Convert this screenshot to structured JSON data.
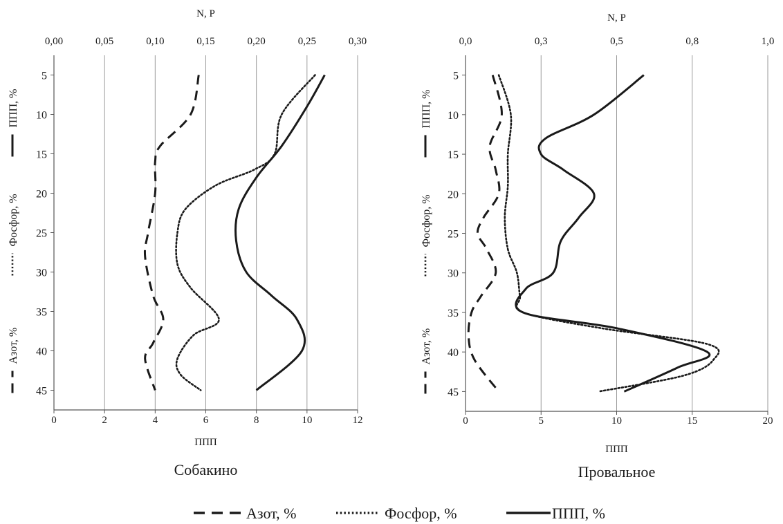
{
  "chart_data": [
    {
      "type": "line",
      "title": "Собакино",
      "top_axis_label": "N, P",
      "bottom_axis_label": "ППП",
      "left_axis_text": [
        "Азот, %",
        "Фосфор, %",
        "ППП, %"
      ],
      "top_ticks": [
        "0,00",
        "0,05",
        "0,10",
        "0,15",
        "0,20",
        "0,25",
        "0,30"
      ],
      "bottom_ticks": [
        "0",
        "2",
        "4",
        "6",
        "8",
        "10",
        "12"
      ],
      "depth_ticks": [
        "5",
        "10",
        "15",
        "20",
        "25",
        "30",
        "35",
        "40",
        "45"
      ],
      "top_range": [
        0,
        0.3
      ],
      "bottom_range": [
        0,
        12
      ],
      "depth_range": [
        2.5,
        47.5
      ],
      "grid": "vertical",
      "series": [
        {
          "name": "Азот, %",
          "axis": "top",
          "style": "dashed",
          "points": [
            [
              0.143,
              5
            ],
            [
              0.135,
              10
            ],
            [
              0.105,
              14
            ],
            [
              0.1,
              16
            ],
            [
              0.1,
              20
            ],
            [
              0.093,
              25
            ],
            [
              0.09,
              28
            ],
            [
              0.098,
              33
            ],
            [
              0.108,
              36
            ],
            [
              0.098,
              39
            ],
            [
              0.09,
              41
            ],
            [
              0.1,
              45
            ]
          ]
        },
        {
          "name": "Фосфор, %",
          "axis": "top",
          "style": "dotted",
          "points": [
            [
              0.258,
              5
            ],
            [
              0.225,
              10
            ],
            [
              0.218,
              15
            ],
            [
              0.198,
              17
            ],
            [
              0.16,
              19
            ],
            [
              0.13,
              22
            ],
            [
              0.122,
              25
            ],
            [
              0.122,
              29
            ],
            [
              0.135,
              32
            ],
            [
              0.163,
              36
            ],
            [
              0.138,
              38
            ],
            [
              0.122,
              41
            ],
            [
              0.125,
              43
            ],
            [
              0.145,
              45
            ]
          ]
        },
        {
          "name": "ППП, %",
          "axis": "bottom",
          "style": "solid",
          "points": [
            [
              10.7,
              5
            ],
            [
              10.0,
              9
            ],
            [
              9.0,
              14
            ],
            [
              8.0,
              18
            ],
            [
              7.3,
              22
            ],
            [
              7.2,
              26
            ],
            [
              7.6,
              30
            ],
            [
              8.6,
              33
            ],
            [
              9.6,
              36
            ],
            [
              9.8,
              40
            ],
            [
              8.0,
              45
            ]
          ]
        }
      ]
    },
    {
      "type": "line",
      "title": "Провальное",
      "top_axis_label": "N, P",
      "bottom_axis_label": "ППП",
      "left_axis_text": [
        "Азот, %",
        "Фосфор, %",
        "ППП, %"
      ],
      "top_ticks": [
        "0,0",
        "0,3",
        "0,5",
        "0,8",
        "1,0"
      ],
      "bottom_ticks": [
        "0",
        "5",
        "10",
        "15",
        "20"
      ],
      "depth_ticks": [
        "5",
        "10",
        "15",
        "20",
        "25",
        "30",
        "35",
        "40",
        "45"
      ],
      "top_range": [
        0,
        1
      ],
      "bottom_range": [
        0,
        20
      ],
      "depth_range": [
        2.5,
        47.5
      ],
      "grid": "vertical",
      "series": [
        {
          "name": "Азот, %",
          "axis": "top",
          "style": "dashed",
          "points": [
            [
              0.09,
              5
            ],
            [
              0.12,
              10
            ],
            [
              0.08,
              14
            ],
            [
              0.1,
              17
            ],
            [
              0.11,
              20
            ],
            [
              0.06,
              23
            ],
            [
              0.04,
              25
            ],
            [
              0.07,
              27
            ],
            [
              0.1,
              30
            ],
            [
              0.05,
              33
            ],
            [
              0.02,
              35
            ],
            [
              0.01,
              38
            ],
            [
              0.03,
              41
            ],
            [
              0.11,
              45
            ]
          ]
        },
        {
          "name": "Фосфор, %",
          "axis": "top",
          "style": "dotted",
          "points": [
            [
              0.11,
              5
            ],
            [
              0.15,
              10
            ],
            [
              0.14,
              15
            ],
            [
              0.14,
              19
            ],
            [
              0.13,
              23
            ],
            [
              0.14,
              27
            ],
            [
              0.17,
              30
            ],
            [
              0.18,
              33
            ],
            [
              0.19,
              35
            ],
            [
              0.45,
              37
            ],
            [
              0.8,
              39
            ],
            [
              0.82,
              41
            ],
            [
              0.72,
              43
            ],
            [
              0.44,
              45
            ]
          ]
        },
        {
          "name": "ППП, %",
          "axis": "bottom",
          "style": "solid",
          "points": [
            [
              11.8,
              5
            ],
            [
              8.5,
              10
            ],
            [
              5.3,
              13
            ],
            [
              5.0,
              15
            ],
            [
              6.5,
              17
            ],
            [
              8.5,
              20
            ],
            [
              7.5,
              23
            ],
            [
              6.3,
              26
            ],
            [
              5.8,
              30
            ],
            [
              4.0,
              32
            ],
            [
              3.8,
              35
            ],
            [
              10.0,
              37
            ],
            [
              16.0,
              40
            ],
            [
              14.0,
              42
            ],
            [
              10.5,
              45
            ]
          ]
        }
      ]
    }
  ],
  "legend": [
    {
      "label": "Азот, %",
      "style": "dashed"
    },
    {
      "label": "Фосфор, %",
      "style": "dotted"
    },
    {
      "label": "ППП, %",
      "style": "solid"
    }
  ],
  "colors": {
    "line": "#1a1a1a",
    "grid": "#9a9a9a",
    "axis": "#555555"
  }
}
